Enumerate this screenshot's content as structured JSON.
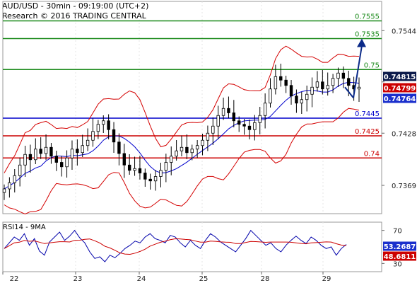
{
  "header": {
    "line1": "AUD/USD - 30min - 09:19:00 (UTC+2)",
    "line2": "Research © 2016 TRADING CENTRAL"
  },
  "colors": {
    "resistance": "#1a8a1a",
    "support": "#cc0000",
    "pivot": "#0000cc",
    "bollinger": "#d40000",
    "ma": "#0000cc",
    "candle": "#000000",
    "forecast_arrow": "#0b2a88",
    "rsi_line": "#0000aa",
    "rsi_ma": "#cc0000",
    "badge_price": "#0b1a4a",
    "badge_red": "#cc0000",
    "badge_blue": "#1a2fcc"
  },
  "chart_data": [
    {
      "type": "candlestick",
      "y_axis_ticks": [
        0.7544,
        0.7486,
        0.7428,
        0.7369
      ],
      "y_axis_tick_labels": [
        "0.7544",
        "",
        "0.7428",
        "0.7369"
      ],
      "ylim": [
        0.7337,
        0.7577
      ],
      "x_axis_ticks": [
        "22",
        "23",
        "24",
        "25",
        "28",
        "29"
      ],
      "levels": [
        {
          "label": "0.7555",
          "value": 0.7555,
          "role": "resistance"
        },
        {
          "label": "0.7535",
          "value": 0.7535,
          "role": "resistance"
        },
        {
          "label": "0.75",
          "value": 0.75,
          "role": "resistance"
        },
        {
          "label": "0.7445",
          "value": 0.7445,
          "role": "pivot"
        },
        {
          "label": "0.7425",
          "value": 0.7425,
          "role": "support"
        },
        {
          "label": "0.74",
          "value": 0.74,
          "role": "support"
        }
      ],
      "price_badges": [
        {
          "label": "0.74815",
          "value": 0.74815,
          "role": "last_price"
        },
        {
          "label": "0.74799",
          "value": 0.74799,
          "role": "red"
        },
        {
          "label": "0.74764",
          "value": 0.74764,
          "role": "blue"
        }
      ],
      "forecast_arrow": {
        "from": 0.7468,
        "to": 0.7535
      },
      "close_series": [
        0.7365,
        0.7372,
        0.738,
        0.7392,
        0.7404,
        0.7398,
        0.741,
        0.7405,
        0.7412,
        0.7402,
        0.7395,
        0.739,
        0.74,
        0.741,
        0.7406,
        0.7414,
        0.742,
        0.743,
        0.7438,
        0.7442,
        0.7432,
        0.7418,
        0.7405,
        0.7392,
        0.7386,
        0.7388,
        0.7383,
        0.7376,
        0.7374,
        0.7379,
        0.7386,
        0.7395,
        0.7402,
        0.7408,
        0.7412,
        0.7406,
        0.741,
        0.7414,
        0.742,
        0.7428,
        0.7436,
        0.7448,
        0.7456,
        0.7451,
        0.7442,
        0.7438,
        0.7436,
        0.7432,
        0.744,
        0.7448,
        0.7462,
        0.7478,
        0.7492,
        0.7488,
        0.7482,
        0.747,
        0.7462,
        0.7466,
        0.7472,
        0.748,
        0.7486,
        0.7478,
        0.7482,
        0.749,
        0.7496,
        0.749,
        0.7482,
        0.7478,
        0.748
      ]
    },
    {
      "type": "line",
      "title": "RSI14 - 9MA",
      "y_axis_ticks": [
        70,
        30
      ],
      "ylim": [
        20,
        80
      ],
      "value_badges": [
        {
          "label": "53.2687",
          "value": 53.2687,
          "role": "rsi"
        },
        {
          "label": "48.6811",
          "value": 48.6811,
          "role": "ma"
        }
      ],
      "rsi_series": [
        48,
        55,
        62,
        58,
        66,
        52,
        60,
        45,
        40,
        56,
        62,
        68,
        58,
        63,
        70,
        61,
        55,
        44,
        36,
        38,
        32,
        40,
        37,
        42,
        48,
        52,
        57,
        55,
        62,
        66,
        60,
        58,
        55,
        64,
        62,
        55,
        50,
        58,
        52,
        48,
        58,
        66,
        62,
        56,
        52,
        48,
        44,
        52,
        60,
        70,
        64,
        58,
        52,
        55,
        48,
        44,
        52,
        58,
        63,
        58,
        54,
        62,
        58,
        52,
        48,
        50,
        40,
        48,
        53
      ]
    }
  ]
}
